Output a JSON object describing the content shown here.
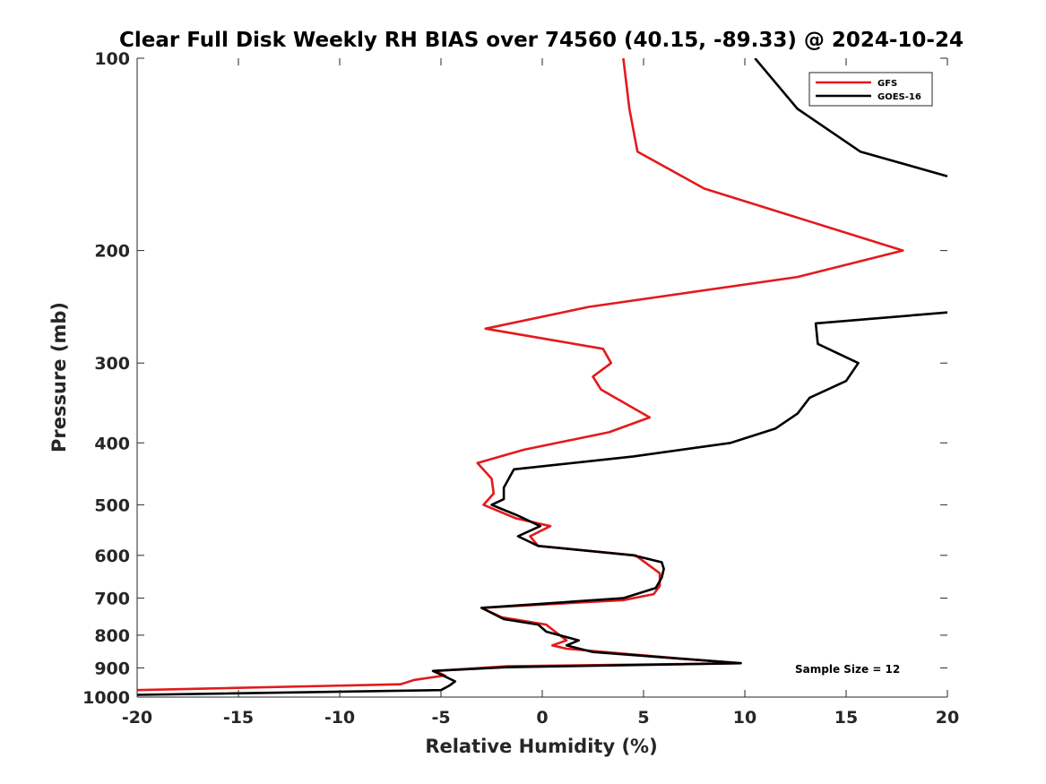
{
  "chart_data": {
    "type": "line",
    "title": "Clear Full Disk Weekly RH BIAS over 74560 (40.15, -89.33) @ 2024-10-24",
    "xlabel": "Relative Humidity (%)",
    "ylabel": "Pressure (mb)",
    "xlim": [
      -20,
      20
    ],
    "ylim": [
      100,
      1000
    ],
    "yscale": "log",
    "y_reversed": true,
    "xticks": [
      -20,
      -15,
      -10,
      -5,
      0,
      5,
      10,
      15,
      20
    ],
    "xtick_labels": [
      "-20",
      "-15",
      "-10",
      "-5",
      "0",
      "5",
      "10",
      "15",
      "20"
    ],
    "yticks": [
      100,
      200,
      300,
      400,
      500,
      600,
      700,
      800,
      900,
      1000
    ],
    "ytick_labels": [
      "100",
      "200",
      "300",
      "400",
      "500",
      "600",
      "700",
      "800",
      "900",
      "1000"
    ],
    "grid": false,
    "legend_position": "top-right",
    "annotation": "Sample Size = 12",
    "series": [
      {
        "name": "GFS",
        "color": "#e31a1c",
        "x": [
          4.0,
          4.3,
          4.7,
          8.0,
          17.8,
          12.6,
          2.3,
          -2.8,
          3.0,
          3.4,
          2.5,
          2.9,
          5.3,
          3.3,
          -0.9,
          -3.2,
          -2.5,
          -2.4,
          -2.9,
          -1.3,
          0.4,
          -0.6,
          -0.2,
          4.6,
          5.8,
          5.8,
          5.5,
          4.0,
          -3.0,
          -2.0,
          0.2,
          0.3,
          1.2,
          0.5,
          1.2,
          6.8,
          9.8,
          -1.7,
          -5.3,
          -4.8,
          -6.3,
          -7.0,
          -20.0
        ],
        "y": [
          100,
          120,
          140,
          160,
          200,
          220,
          245,
          265,
          285,
          300,
          315,
          330,
          365,
          385,
          410,
          430,
          455,
          480,
          500,
          525,
          540,
          560,
          580,
          600,
          640,
          670,
          690,
          705,
          725,
          750,
          770,
          775,
          815,
          830,
          840,
          870,
          885,
          895,
          910,
          925,
          940,
          955,
          975
        ]
      },
      {
        "name": "GOES-16",
        "color": "#000000",
        "x": [
          10.5,
          12.6,
          15.7,
          20.0,
          null,
          20.0,
          13.5,
          13.6,
          15.6,
          15.0,
          13.2,
          12.6,
          11.5,
          9.3,
          4.5,
          -1.4,
          -1.9,
          -1.9,
          -2.5,
          -1.2,
          -0.1,
          -1.2,
          -0.2,
          4.5,
          5.9,
          6.0,
          5.9,
          5.6,
          4.0,
          -3.0,
          -1.9,
          -0.2,
          0.2,
          1.8,
          1.2,
          2.5,
          9.8,
          -1.8,
          -5.4,
          -4.9,
          -4.3,
          -4.6,
          -5.0,
          -20.0
        ],
        "y": [
          100,
          120,
          140,
          153,
          null,
          250,
          260,
          280,
          300,
          320,
          340,
          360,
          380,
          400,
          420,
          440,
          470,
          490,
          500,
          520,
          540,
          560,
          580,
          600,
          615,
          630,
          650,
          675,
          700,
          725,
          755,
          770,
          790,
          815,
          830,
          850,
          885,
          898,
          910,
          925,
          945,
          960,
          975,
          992
        ]
      }
    ]
  }
}
